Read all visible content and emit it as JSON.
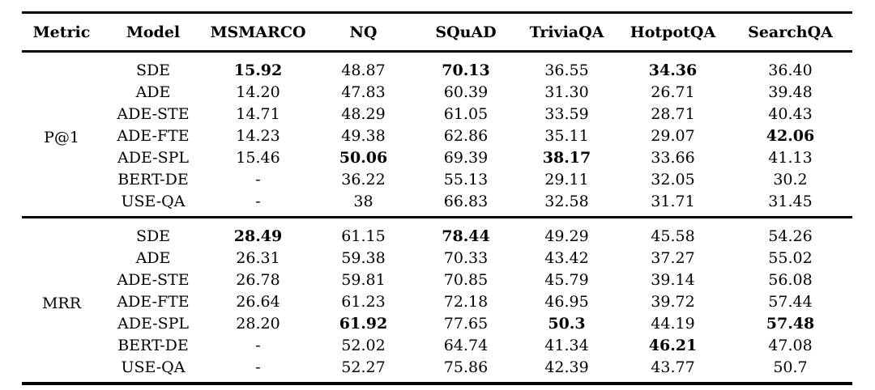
{
  "page": {
    "background_color": "#ffffff",
    "text_color": "#000000",
    "rule_color": "#000000"
  },
  "table": {
    "headers": [
      "Metric",
      "Model",
      "MSMARCO",
      "NQ",
      "SQuAD",
      "TriviaQA",
      "HotpotQA",
      "SearchQA"
    ],
    "sections": [
      {
        "metric": "P@1",
        "rows": [
          {
            "model": "SDE",
            "values": [
              "15.92",
              "48.87",
              "70.13",
              "36.55",
              "34.36",
              "36.40"
            ],
            "bold": [
              true,
              false,
              true,
              false,
              true,
              false
            ]
          },
          {
            "model": "ADE",
            "values": [
              "14.20",
              "47.83",
              "60.39",
              "31.30",
              "26.71",
              "39.48"
            ],
            "bold": [
              false,
              false,
              false,
              false,
              false,
              false
            ]
          },
          {
            "model": "ADE-STE",
            "values": [
              "14.71",
              "48.29",
              "61.05",
              "33.59",
              "28.71",
              "40.43"
            ],
            "bold": [
              false,
              false,
              false,
              false,
              false,
              false
            ]
          },
          {
            "model": "ADE-FTE",
            "values": [
              "14.23",
              "49.38",
              "62.86",
              "35.11",
              "29.07",
              "42.06"
            ],
            "bold": [
              false,
              false,
              false,
              false,
              false,
              true
            ]
          },
          {
            "model": "ADE-SPL",
            "values": [
              "15.46",
              "50.06",
              "69.39",
              "38.17",
              "33.66",
              "41.13"
            ],
            "bold": [
              false,
              true,
              false,
              true,
              false,
              false
            ]
          },
          {
            "model": "BERT-DE",
            "values": [
              "-",
              "36.22",
              "55.13",
              "29.11",
              "32.05",
              "30.2"
            ],
            "bold": [
              false,
              false,
              false,
              false,
              false,
              false
            ]
          },
          {
            "model": "USE-QA",
            "values": [
              "-",
              "38",
              "66.83",
              "32.58",
              "31.71",
              "31.45"
            ],
            "bold": [
              false,
              false,
              false,
              false,
              false,
              false
            ]
          }
        ]
      },
      {
        "metric": "MRR",
        "rows": [
          {
            "model": "SDE",
            "values": [
              "28.49",
              "61.15",
              "78.44",
              "49.29",
              "45.58",
              "54.26"
            ],
            "bold": [
              true,
              false,
              true,
              false,
              false,
              false
            ]
          },
          {
            "model": "ADE",
            "values": [
              "26.31",
              "59.38",
              "70.33",
              "43.42",
              "37.27",
              "55.02"
            ],
            "bold": [
              false,
              false,
              false,
              false,
              false,
              false
            ]
          },
          {
            "model": "ADE-STE",
            "values": [
              "26.78",
              "59.81",
              "70.85",
              "45.79",
              "39.14",
              "56.08"
            ],
            "bold": [
              false,
              false,
              false,
              false,
              false,
              false
            ]
          },
          {
            "model": "ADE-FTE",
            "values": [
              "26.64",
              "61.23",
              "72.18",
              "46.95",
              "39.72",
              "57.44"
            ],
            "bold": [
              false,
              false,
              false,
              false,
              false,
              false
            ]
          },
          {
            "model": "ADE-SPL",
            "values": [
              "28.20",
              "61.92",
              "77.65",
              "50.3",
              "44.19",
              "57.48"
            ],
            "bold": [
              false,
              true,
              false,
              true,
              false,
              true
            ]
          },
          {
            "model": "BERT-DE",
            "values": [
              "-",
              "52.02",
              "64.74",
              "41.34",
              "46.21",
              "47.08"
            ],
            "bold": [
              false,
              false,
              false,
              false,
              true,
              false
            ]
          },
          {
            "model": "USE-QA",
            "values": [
              "-",
              "52.27",
              "75.86",
              "42.39",
              "43.77",
              "50.7"
            ],
            "bold": [
              false,
              false,
              false,
              false,
              false,
              false
            ]
          }
        ]
      }
    ]
  }
}
